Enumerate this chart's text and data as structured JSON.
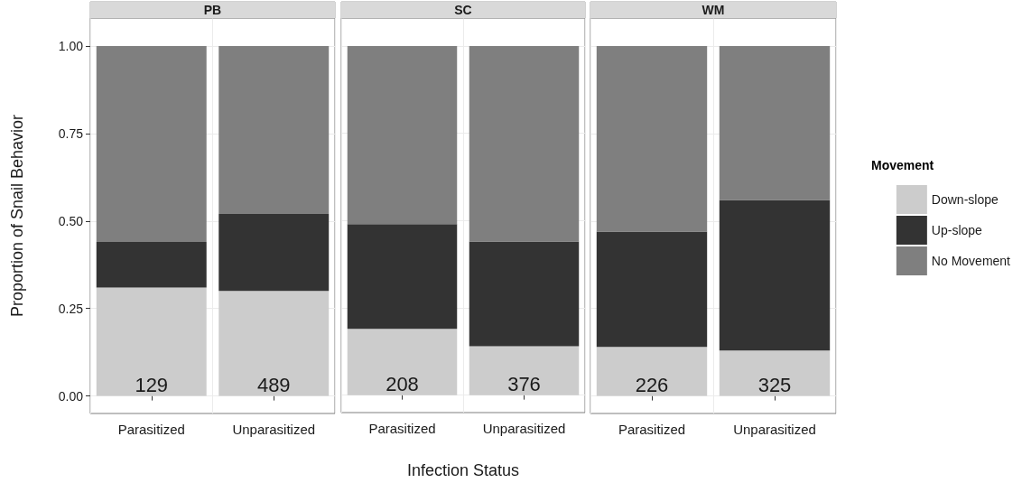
{
  "chart_data": [
    {
      "type": "bar",
      "title": "PB",
      "ylabel": "Proportion of Snail Behavior",
      "categories": [
        "Parasitized",
        "Unparasitized"
      ],
      "stacked": true,
      "ylim": [
        -0.05,
        1.08
      ],
      "yticks": [
        {
          "value": 0,
          "label": "0.00"
        },
        {
          "value": 0.25,
          "label": "0.25"
        },
        {
          "value": 0.5,
          "label": "0.50"
        },
        {
          "value": 0.75,
          "label": "0.75"
        },
        {
          "value": 1,
          "label": "1.00"
        }
      ],
      "grid": true,
      "legend": false,
      "series": [
        {
          "color": "#cccccc",
          "values": [
            0.31,
            0.3
          ]
        },
        {
          "color": "#333333",
          "values": [
            0.13,
            0.22
          ]
        },
        {
          "color": "#7f7f7f",
          "values": [
            0.56,
            0.48
          ]
        }
      ],
      "annotations": [
        "129",
        "489"
      ]
    },
    {
      "type": "bar",
      "title": "SC",
      "xlabel": "Infection Status",
      "categories": [
        "Parasitized",
        "Unparasitized"
      ],
      "stacked": true,
      "ylim": [
        -0.05,
        1.08
      ],
      "yticks": [
        0,
        0.25,
        0.5,
        0.75,
        1
      ],
      "grid": true,
      "legend": false,
      "tick_labels": "x",
      "series": [
        {
          "color": "#cccccc",
          "values": [
            0.19,
            0.14
          ]
        },
        {
          "color": "#333333",
          "values": [
            0.3,
            0.3
          ]
        },
        {
          "color": "#7f7f7f",
          "values": [
            0.51,
            0.56
          ]
        }
      ],
      "annotations": [
        "208",
        "376"
      ]
    },
    {
      "type": "bar",
      "title": "WM",
      "categories": [
        "Parasitized",
        "Unparasitized"
      ],
      "stacked": true,
      "ylim": [
        -0.05,
        1.08
      ],
      "yticks": [
        0,
        0.25,
        0.5,
        0.75,
        1
      ],
      "grid": true,
      "legend": "right",
      "legend_title": "Movement",
      "tick_labels": "x",
      "series": [
        {
          "name": "Down-slope",
          "color": "#cccccc",
          "values": [
            0.14,
            0.13
          ]
        },
        {
          "name": "Up-slope",
          "color": "#333333",
          "values": [
            0.33,
            0.43
          ]
        },
        {
          "name": "No Movement",
          "color": "#7f7f7f",
          "values": [
            0.53,
            0.44
          ]
        }
      ],
      "annotations": [
        "226",
        "325"
      ]
    }
  ]
}
